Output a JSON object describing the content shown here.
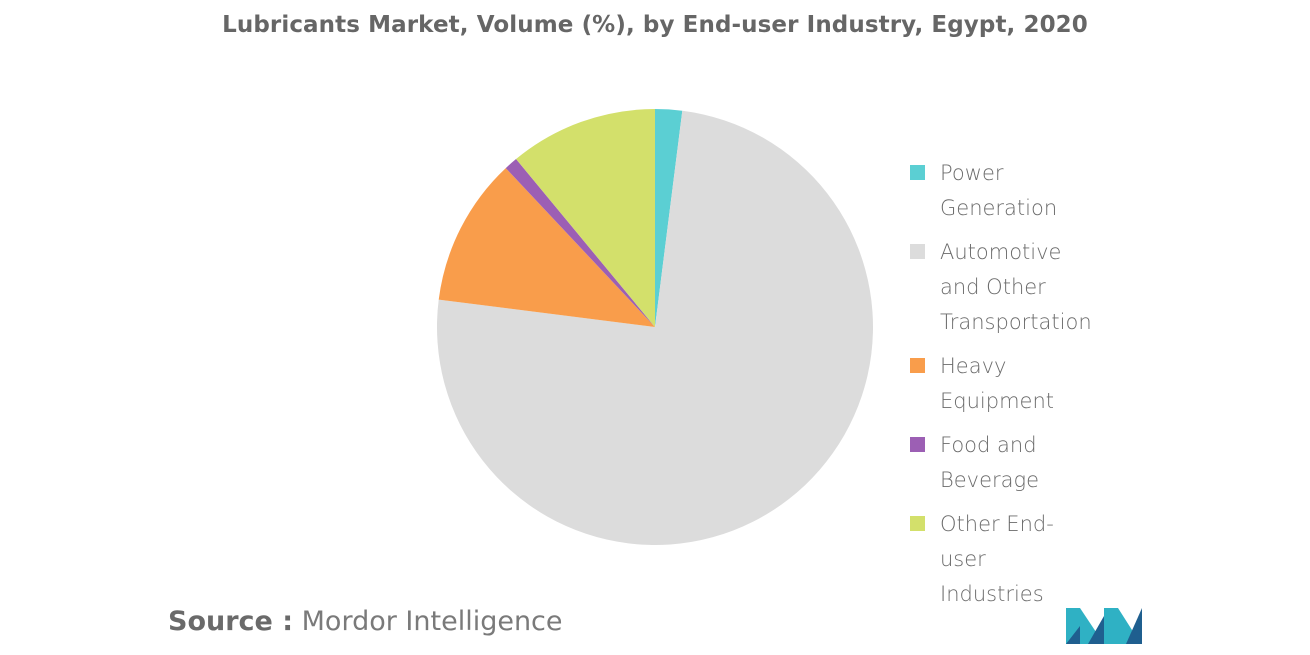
{
  "title": "Lubricants Market, Volume (%), by End-user Industry, Egypt, 2020",
  "source_label": "Source :",
  "source_value": "Mordor Intelligence",
  "chart_data": {
    "type": "pie",
    "title": "Lubricants Market, Volume (%), by End-user Industry, Egypt, 2020",
    "legend_position": "right",
    "slices": [
      {
        "label": "Power Generation",
        "value": 2,
        "color": "#5bcfd3"
      },
      {
        "label": "Automotive and Other Transportation",
        "value": 75,
        "color": "#dcdcdc"
      },
      {
        "label": "Heavy Equipment",
        "value": 11,
        "color": "#f99d4b"
      },
      {
        "label": "Food and Beverage",
        "value": 1,
        "color": "#9c5fb4"
      },
      {
        "label": "Other End-user Industries",
        "value": 11,
        "color": "#d3e06b"
      }
    ]
  },
  "legend": [
    {
      "label": "Power Generation",
      "color": "#5bcfd3"
    },
    {
      "label": "Automotive and Other Transportation",
      "color": "#dcdcdc"
    },
    {
      "label": "Heavy Equipment",
      "color": "#f99d4b"
    },
    {
      "label": "Food and Beverage",
      "color": "#9c5fb4"
    },
    {
      "label": "Other End-user Industries",
      "color": "#d3e06b"
    }
  ],
  "logo": {
    "name": "mordor-intelligence-logo-icon",
    "colors": [
      "#2fb1c4",
      "#1f5f8f"
    ]
  }
}
